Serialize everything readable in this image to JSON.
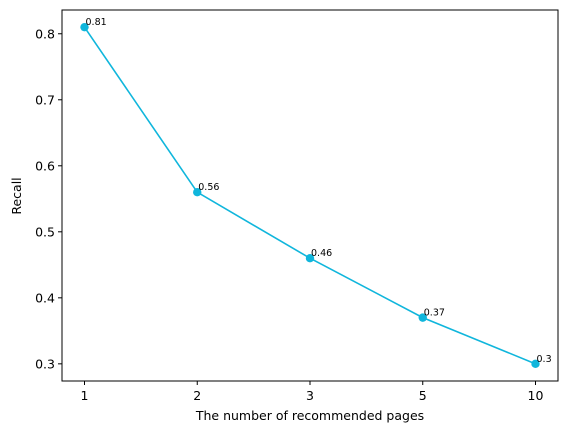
{
  "chart_data": {
    "type": "line",
    "x": [
      "1",
      "2",
      "3",
      "5",
      "10"
    ],
    "values": [
      0.81,
      0.56,
      0.46,
      0.37,
      0.3
    ],
    "point_labels": [
      "0.81",
      "0.56",
      "0.46",
      "0.37",
      "0.3"
    ],
    "xlabel": "The number of recommended pages",
    "ylabel": "Recall",
    "yticks": [
      "0.3",
      "0.4",
      "0.5",
      "0.6",
      "0.7",
      "0.8"
    ],
    "ylim": [
      0.274,
      0.836
    ],
    "grid": false,
    "line_color": "#10b6dc",
    "marker": "circle"
  }
}
